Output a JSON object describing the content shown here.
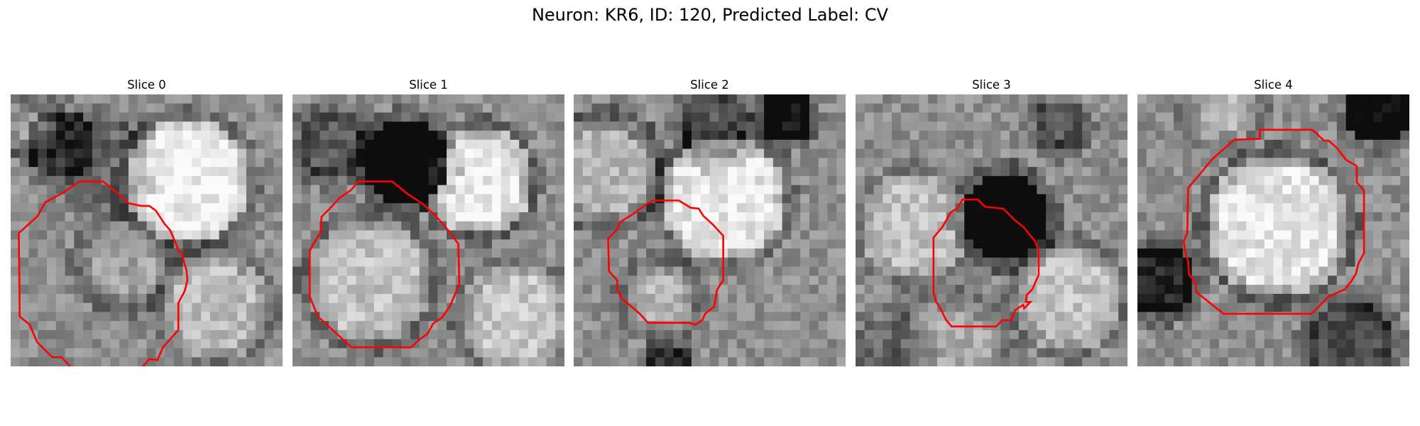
{
  "figure": {
    "title": "Neuron: KR6, ID: 120, Predicted Label: CV",
    "neuron": "KR6",
    "id": 120,
    "predicted_label": "CV"
  },
  "slices": [
    {
      "title": "Slice 0",
      "index": 0
    },
    {
      "title": "Slice 1",
      "index": 1
    },
    {
      "title": "Slice 2",
      "index": 2
    },
    {
      "title": "Slice 3",
      "index": 3
    },
    {
      "title": "Slice 4",
      "index": 4
    }
  ],
  "colors": {
    "outline": "#ff0000",
    "background": "#ffffff"
  }
}
